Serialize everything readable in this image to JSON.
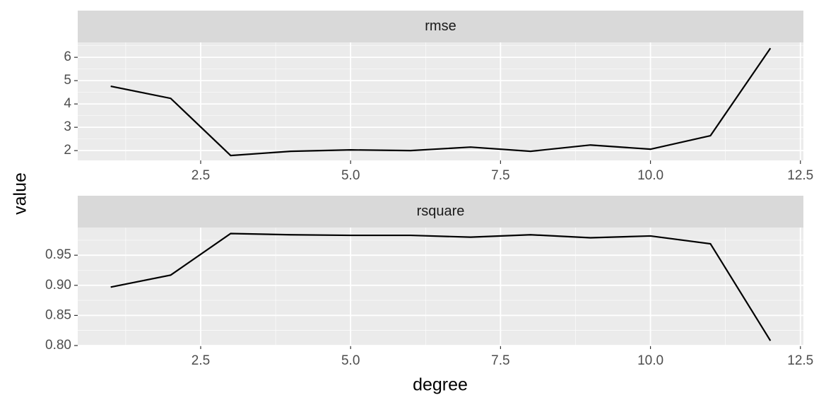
{
  "xlabel": "degree",
  "ylabel": "value",
  "chart_data": [
    {
      "type": "line",
      "title": "rmse",
      "x": [
        1,
        2,
        3,
        4,
        5,
        6,
        7,
        8,
        9,
        10,
        11,
        12
      ],
      "values": [
        4.76,
        4.24,
        1.79,
        1.97,
        2.03,
        2.0,
        2.15,
        1.97,
        2.24,
        2.06,
        2.64,
        6.39
      ],
      "color": "#000000",
      "xlim": [
        0.45,
        12.55
      ],
      "xticks": [
        {
          "value": 2.5,
          "label": "2.5"
        },
        {
          "value": 5,
          "label": "5.0"
        },
        {
          "value": 7.5,
          "label": "7.5"
        },
        {
          "value": 10,
          "label": "10.0"
        },
        {
          "value": 12.5,
          "label": "12.5"
        }
      ],
      "ylim": [
        1.58,
        6.64
      ],
      "yticks": [
        2,
        3,
        4,
        5,
        6
      ],
      "grid": true
    },
    {
      "type": "line",
      "title": "rsquare",
      "x": [
        1,
        2,
        3,
        4,
        5,
        6,
        7,
        8,
        9,
        10,
        11,
        12
      ],
      "values": [
        0.897,
        0.917,
        0.986,
        0.984,
        0.983,
        0.983,
        0.98,
        0.984,
        0.979,
        0.982,
        0.969,
        0.808
      ],
      "color": "#000000",
      "xlim": [
        0.45,
        12.55
      ],
      "xticks": [
        {
          "value": 2.5,
          "label": "2.5"
        },
        {
          "value": 5,
          "label": "5.0"
        },
        {
          "value": 7.5,
          "label": "7.5"
        },
        {
          "value": 10,
          "label": "10.0"
        },
        {
          "value": 12.5,
          "label": "12.5"
        }
      ],
      "ylim": [
        0.8,
        0.996
      ],
      "yticks": [
        {
          "value": 0.8,
          "label": "0.80"
        },
        {
          "value": 0.85,
          "label": "0.85"
        },
        {
          "value": 0.9,
          "label": "0.90"
        },
        {
          "value": 0.95,
          "label": "0.95"
        }
      ],
      "grid": true
    }
  ]
}
